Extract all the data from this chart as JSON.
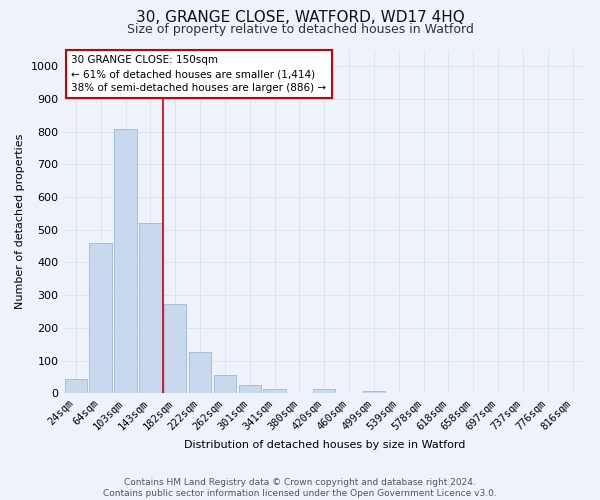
{
  "title": "30, GRANGE CLOSE, WATFORD, WD17 4HQ",
  "subtitle": "Size of property relative to detached houses in Watford",
  "xlabel": "Distribution of detached houses by size in Watford",
  "ylabel": "Number of detached properties",
  "bar_color": "#c8d8ef",
  "bar_edge_color": "#a0b8d8",
  "categories": [
    "24sqm",
    "64sqm",
    "103sqm",
    "143sqm",
    "182sqm",
    "222sqm",
    "262sqm",
    "301sqm",
    "341sqm",
    "380sqm",
    "420sqm",
    "460sqm",
    "499sqm",
    "539sqm",
    "578sqm",
    "618sqm",
    "658sqm",
    "697sqm",
    "737sqm",
    "776sqm",
    "816sqm"
  ],
  "values": [
    45,
    460,
    808,
    522,
    272,
    125,
    57,
    25,
    12,
    0,
    13,
    0,
    8,
    0,
    0,
    0,
    0,
    0,
    0,
    0,
    0
  ],
  "ylim": [
    0,
    1050
  ],
  "yticks": [
    0,
    100,
    200,
    300,
    400,
    500,
    600,
    700,
    800,
    900,
    1000
  ],
  "vline_x": 3.5,
  "vline_color": "#cc0000",
  "annotation_text": "30 GRANGE CLOSE: 150sqm\n← 61% of detached houses are smaller (1,414)\n38% of semi-detached houses are larger (886) →",
  "annotation_box_color": "#ffffff",
  "annotation_box_edge": "#cc0000",
  "grid_color": "#dce4f0",
  "background_color": "#eef2fa",
  "footer": "Contains HM Land Registry data © Crown copyright and database right 2024.\nContains public sector information licensed under the Open Government Licence v3.0.",
  "title_fontsize": 11,
  "subtitle_fontsize": 9,
  "ylabel_fontsize": 8,
  "xlabel_fontsize": 8,
  "tick_fontsize": 7.5,
  "footer_fontsize": 6.5,
  "annot_fontsize": 7.5
}
